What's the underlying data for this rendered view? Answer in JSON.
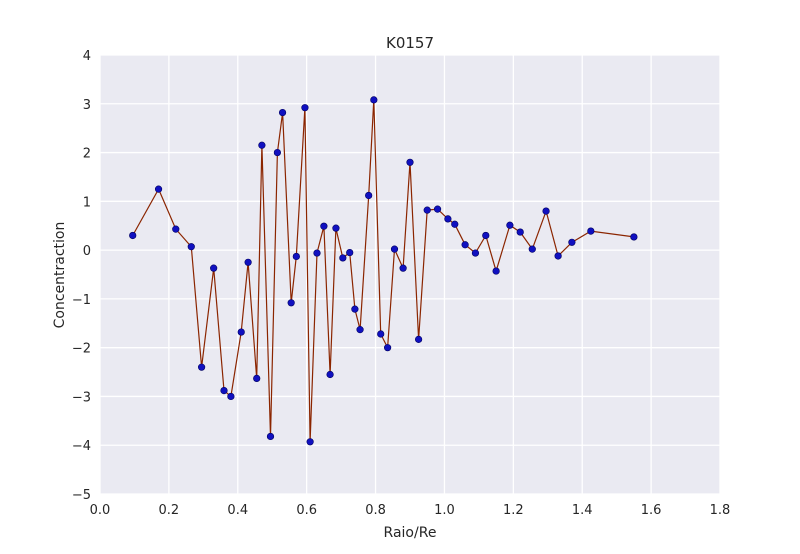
{
  "chart_data": {
    "type": "line",
    "title": "K0157",
    "xlabel": "Raio/Re",
    "ylabel": "Concentraction",
    "xlim": [
      0.0,
      1.8
    ],
    "ylim": [
      -5,
      4
    ],
    "xticks": [
      0.0,
      0.2,
      0.4,
      0.6,
      0.8,
      1.0,
      1.2,
      1.4,
      1.6,
      1.8
    ],
    "xtick_labels": [
      "0.0",
      "0.2",
      "0.4",
      "0.6",
      "0.8",
      "1.0",
      "1.2",
      "1.4",
      "1.6",
      "1.8"
    ],
    "yticks": [
      4,
      3,
      2,
      1,
      0,
      -1,
      -2,
      -3,
      -4,
      -5
    ],
    "ytick_labels": [
      "4",
      "3",
      "2",
      "1",
      "0",
      "−1",
      "−2",
      "−3",
      "−4",
      "−5"
    ],
    "grid": true,
    "background": "#EAEAF2",
    "grid_color": "#ffffff",
    "line_color": "#8B2500",
    "marker_color": "#1010C0",
    "marker_edge": "#000060",
    "series": [
      {
        "x": [
          0.095,
          0.17,
          0.22,
          0.265,
          0.295,
          0.33,
          0.36,
          0.38,
          0.41,
          0.43,
          0.455,
          0.47,
          0.495,
          0.515,
          0.53,
          0.555,
          0.57,
          0.595,
          0.61,
          0.63,
          0.65,
          0.668,
          0.685,
          0.705,
          0.725,
          0.74,
          0.755,
          0.78,
          0.795,
          0.815,
          0.835,
          0.855,
          0.88,
          0.9,
          0.925,
          0.95,
          0.98,
          1.01,
          1.03,
          1.06,
          1.09,
          1.12,
          1.15,
          1.19,
          1.22,
          1.255,
          1.295,
          1.33,
          1.37,
          1.425,
          1.55
        ],
        "y": [
          0.3,
          1.25,
          0.43,
          0.07,
          -2.4,
          -0.37,
          -2.88,
          -3.0,
          -1.68,
          -0.25,
          -2.63,
          2.15,
          -3.82,
          2.0,
          2.82,
          -1.08,
          -0.13,
          2.92,
          -3.93,
          -0.06,
          0.49,
          -2.55,
          0.45,
          -0.16,
          -0.05,
          -1.21,
          -1.63,
          1.12,
          3.08,
          -1.72,
          -2.0,
          0.02,
          -0.37,
          1.8,
          -1.83,
          0.82,
          0.84,
          0.64,
          0.53,
          0.11,
          -0.06,
          0.3,
          -0.43,
          0.51,
          0.37,
          0.02,
          0.8,
          -0.12,
          0.16,
          0.39,
          0.27
        ]
      }
    ]
  }
}
